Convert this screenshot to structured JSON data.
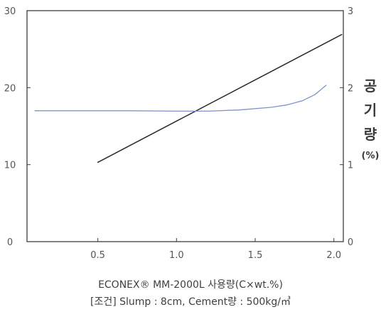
{
  "chart_data": {
    "type": "line",
    "xlabel": "ECONEX® MM-2000L 사용량(C×wt.%)",
    "condition": "[조건] Slump : 8cm, Cement량 : 500kg/㎥",
    "right_axis_label_chars": [
      "공",
      "기",
      "량"
    ],
    "right_axis_unit": "(%)",
    "x_ticks": [
      {
        "value": 0.5,
        "label": "0.5"
      },
      {
        "value": 1.0,
        "label": "1.0"
      },
      {
        "value": 1.5,
        "label": "1.5"
      },
      {
        "value": 2.0,
        "label": "2.0"
      }
    ],
    "y_left_ticks": [
      {
        "value": 0,
        "label": "0"
      },
      {
        "value": 10,
        "label": "10"
      },
      {
        "value": 20,
        "label": "20"
      },
      {
        "value": 30,
        "label": "30"
      }
    ],
    "y_right_ticks": [
      {
        "value": 0,
        "label": "0"
      },
      {
        "value": 1,
        "label": "1"
      },
      {
        "value": 2,
        "label": "2"
      },
      {
        "value": 3,
        "label": "3"
      }
    ],
    "xlim": [
      0.05,
      2.06
    ],
    "y_left_lim": [
      0,
      30
    ],
    "y_right_lim": [
      0,
      3
    ],
    "grid": false,
    "series": [
      {
        "axis": "left",
        "color": "#2a2a2a",
        "points": [
          [
            0.5,
            10.3
          ],
          [
            2.05,
            26.9
          ]
        ]
      },
      {
        "axis": "left",
        "color": "#7f92d0",
        "points": [
          [
            0.1,
            17.0
          ],
          [
            0.4,
            17.0
          ],
          [
            0.7,
            17.0
          ],
          [
            1.0,
            16.95
          ],
          [
            1.2,
            16.95
          ],
          [
            1.4,
            17.1
          ],
          [
            1.6,
            17.45
          ],
          [
            1.7,
            17.75
          ],
          [
            1.8,
            18.3
          ],
          [
            1.88,
            19.1
          ],
          [
            1.95,
            20.3
          ]
        ]
      }
    ]
  }
}
